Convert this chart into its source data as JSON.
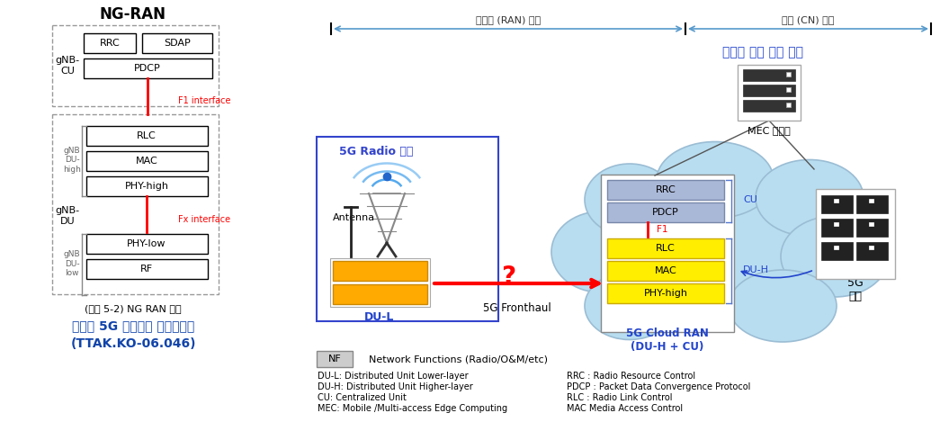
{
  "bg_color": "#ffffff",
  "title_left": "NG-RAN",
  "caption_left": "(그림 5-2) NG RAN 구조",
  "bottom_title1": "개방형 5G 프론트홀 인터페이스",
  "bottom_title2": "(TTAK.KO-06.046)",
  "label_access": "액세스 (RAN) 영역",
  "label_core": "코어 (CN) 영역",
  "label_virtual": "가상화 기반 구현 영역",
  "label_radio": "5G Radio 영역",
  "label_fronthaul": "5G Fronthaul",
  "label_cloudran": "5G Cloud RAN\n(DU-H + CU)",
  "label_mec": "MEC 플랫폼",
  "label_5gcore": "5G\n코어",
  "label_antenna": "Antenna",
  "label_dul": "DU-L",
  "label_cu": "CU",
  "label_duh": "DU-H",
  "label_f1": "F1",
  "label_question": "?",
  "legend_nf": "NF",
  "legend_nf_text": "Network Functions (Radio/O&M/etc)",
  "abbrev_lines": [
    "DU-L: Distributed Unit Lower-layer",
    "DU-H: Distributed Unit Higher-layer",
    "CU: Centralized Unit",
    "MEC: Mobile /Multi-access Edge Computing"
  ],
  "abbrev_lines2": [
    "RRC : Radio Resource Control",
    "PDCP : Packet Data Convergence Protocol",
    "RLC : Radio Link Control",
    "MAC Media Access Control"
  ],
  "arrow_color": "#5599cc",
  "cloud_color": "#b8ddf0",
  "cloud_edge": "#9bbdd4"
}
